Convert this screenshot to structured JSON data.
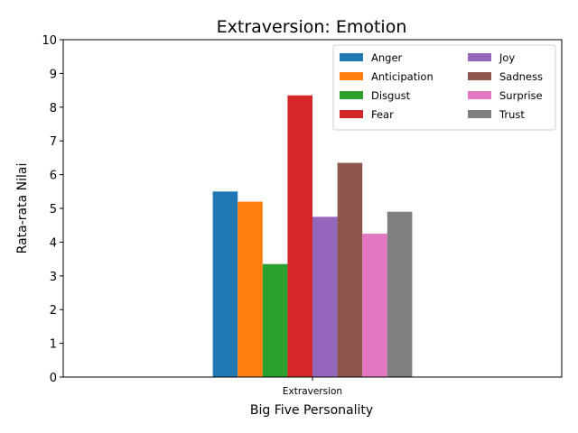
{
  "chart_data": {
    "type": "bar",
    "title": "Extraversion: Emotion",
    "xlabel": "Big Five Personality",
    "ylabel": "Rata-rata Nilai",
    "categories": [
      "Extraversion"
    ],
    "ylim": [
      0,
      10
    ],
    "yticks": [
      0,
      1,
      2,
      3,
      4,
      5,
      6,
      7,
      8,
      9,
      10
    ],
    "grid": false,
    "legend": {
      "placement": "top-right",
      "columns": 2
    },
    "series": [
      {
        "name": "Anger",
        "values": [
          5.5
        ],
        "color": "#1f77b4"
      },
      {
        "name": "Anticipation",
        "values": [
          5.2
        ],
        "color": "#ff7f0e"
      },
      {
        "name": "Disgust",
        "values": [
          3.35
        ],
        "color": "#2ca02c"
      },
      {
        "name": "Fear",
        "values": [
          8.35
        ],
        "color": "#d62728"
      },
      {
        "name": "Joy",
        "values": [
          4.75
        ],
        "color": "#9467bd"
      },
      {
        "name": "Sadness",
        "values": [
          6.35
        ],
        "color": "#8c564b"
      },
      {
        "name": "Surprise",
        "values": [
          4.25
        ],
        "color": "#e377c2"
      },
      {
        "name": "Trust",
        "values": [
          4.9
        ],
        "color": "#7f7f7f"
      }
    ]
  }
}
